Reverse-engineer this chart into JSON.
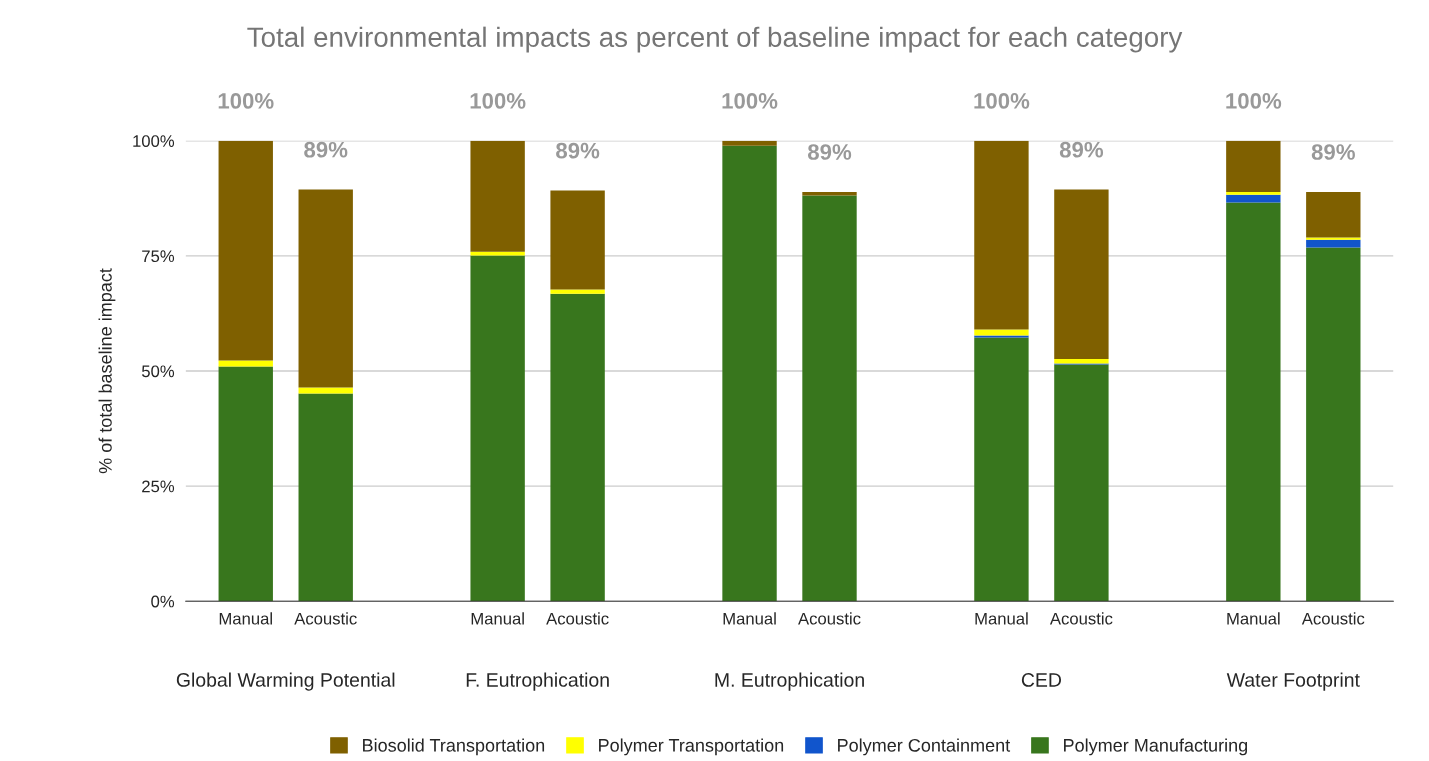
{
  "chart_data": {
    "type": "bar",
    "title": "Total environmental impacts as percent of baseline impact for each category",
    "ylabel": "% of total baseline impact",
    "categories": [
      "Manual",
      "Acoustic",
      "Manual",
      "Acoustic",
      "Manual",
      "Acoustic",
      "Manual",
      "Acoustic",
      "Manual",
      "Acoustic"
    ],
    "annotations": [
      "Global Warming Potential",
      "F. Eutrophication",
      "M. Eutrophication",
      "CED",
      "Water Footprint"
    ],
    "stacked": true,
    "series": [
      {
        "name": "Polymer Manufacturing",
        "color": "#38761d",
        "values": [
          51.0,
          45.1,
          75.1,
          66.8,
          98.9,
          88.1,
          57.3,
          51.4,
          86.6,
          76.8
        ]
      },
      {
        "name": "Polymer Containment",
        "color": "#1155cc",
        "values": [
          0,
          0,
          0,
          0,
          0,
          0,
          0.4,
          0.2,
          1.7,
          1.7
        ]
      },
      {
        "name": "Polymer Transportation",
        "color": "#ffff00",
        "values": [
          1.3,
          1.3,
          0.8,
          0.9,
          0,
          0,
          1.3,
          1.0,
          0.6,
          0.5
        ]
      },
      {
        "name": "Biosolid Transportation",
        "color": "#7f6000",
        "values": [
          47.7,
          43.0,
          24.1,
          21.5,
          1.1,
          0.8,
          41.0,
          36.8,
          11.1,
          9.9
        ]
      }
    ],
    "totals": [
      "100%",
      "89%",
      "100%",
      "89%",
      "100%",
      "89%",
      "100%",
      "89%",
      "100%",
      "89%"
    ],
    "ylim": [
      0,
      100
    ],
    "yticks": [
      {
        "value": 0,
        "label": "0%"
      },
      {
        "value": 25,
        "label": "25%"
      },
      {
        "value": 50,
        "label": "50%"
      },
      {
        "value": 75,
        "label": "75%"
      },
      {
        "value": 100,
        "label": "100%"
      }
    ],
    "grid": "y",
    "legend": "bottom"
  }
}
